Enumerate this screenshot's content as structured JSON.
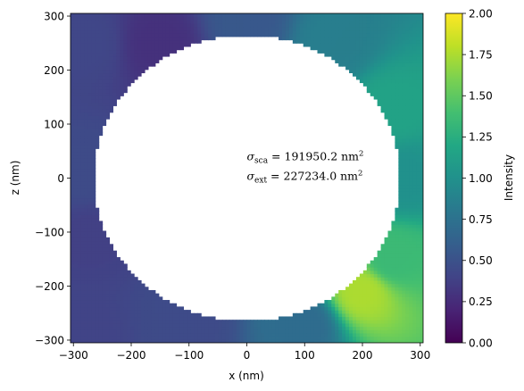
{
  "chart_data": {
    "type": "heatmap",
    "title": "",
    "xlabel": "x (nm)",
    "ylabel": "z (nm)",
    "xlim": [
      -305,
      305
    ],
    "ylim": [
      -305,
      305
    ],
    "x_ticks": [
      -300,
      -200,
      -100,
      0,
      100,
      200,
      300
    ],
    "y_ticks": [
      -300,
      -200,
      -100,
      0,
      100,
      200,
      300
    ],
    "x_tick_labels": [
      "−300",
      "−200",
      "−100",
      "0",
      "100",
      "200",
      "300"
    ],
    "y_tick_labels": [
      "−300",
      "−200",
      "−100",
      "0",
      "100",
      "200",
      "300"
    ],
    "masked_region": {
      "shape": "circle",
      "center": [
        0,
        0
      ],
      "radius_nm": 265
    },
    "grid": false,
    "colormap": "viridis",
    "colorbar": {
      "label": "Intensity",
      "range": [
        0.0,
        2.0
      ],
      "ticks": [
        0.0,
        0.25,
        0.5,
        0.75,
        1.0,
        1.25,
        1.5,
        1.75,
        2.0
      ],
      "tick_labels": [
        "0.00",
        "0.25",
        "0.50",
        "0.75",
        "1.00",
        "1.25",
        "1.50",
        "1.75",
        "2.00"
      ]
    },
    "field_samples": [
      {
        "x": -280,
        "z": 250,
        "intensity": 0.42
      },
      {
        "x": -150,
        "z": 250,
        "intensity": 0.28
      },
      {
        "x": 0,
        "z": 290,
        "intensity": 0.55
      },
      {
        "x": 150,
        "z": 250,
        "intensity": 0.85
      },
      {
        "x": 250,
        "z": 130,
        "intensity": 1.15
      },
      {
        "x": 270,
        "z": 0,
        "intensity": 1.0
      },
      {
        "x": 250,
        "z": -150,
        "intensity": 1.35
      },
      {
        "x": 200,
        "z": -210,
        "intensity": 1.75
      },
      {
        "x": 100,
        "z": -270,
        "intensity": 0.7
      },
      {
        "x": -100,
        "z": -270,
        "intensity": 0.45
      },
      {
        "x": -270,
        "z": -100,
        "intensity": 0.38
      },
      {
        "x": -285,
        "z": 0,
        "intensity": 0.45
      },
      {
        "x": -290,
        "z": -290,
        "intensity": 0.4
      }
    ],
    "annotations": [
      {
        "symbol": "σ",
        "sub": "sca",
        "text": " = 191950.2 nm",
        "sup": "2",
        "x": 0,
        "z": 40
      },
      {
        "symbol": "σ",
        "sub": "ext",
        "text": " = 227234.0 nm",
        "sup": "2",
        "x": 0,
        "z": 3
      }
    ]
  }
}
